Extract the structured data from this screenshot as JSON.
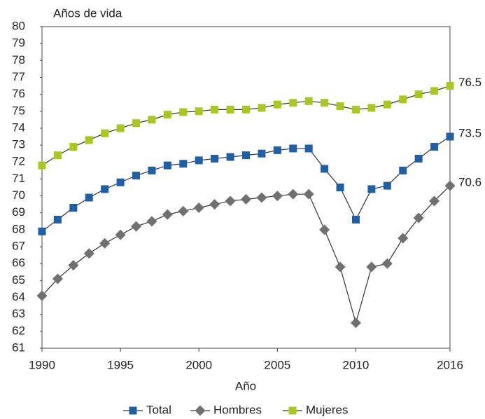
{
  "chart_data": {
    "type": "line",
    "y_axis_label": "Años de vida",
    "x_axis_label": "Año",
    "x": [
      1990,
      1991,
      1992,
      1993,
      1994,
      1995,
      1996,
      1997,
      1998,
      1999,
      2000,
      2001,
      2002,
      2003,
      2004,
      2005,
      2006,
      2007,
      2008,
      2009,
      2010,
      2011,
      2012,
      2013,
      2014,
      2015,
      2016
    ],
    "xlim": [
      1990,
      2016
    ],
    "xticks": [
      1990,
      1995,
      2000,
      2005,
      2010,
      2016
    ],
    "ylim": [
      61,
      80
    ],
    "yticks": [
      61,
      62,
      63,
      64,
      65,
      66,
      67,
      68,
      69,
      70,
      71,
      72,
      73,
      74,
      75,
      76,
      77,
      78,
      79,
      80
    ],
    "line_color": "#333333",
    "legend": "bottom",
    "series": [
      {
        "name": "Total",
        "color": "#1f5fa8",
        "marker": "square",
        "values": [
          67.9,
          68.6,
          69.3,
          69.9,
          70.4,
          70.8,
          71.2,
          71.5,
          71.8,
          71.9,
          72.1,
          72.2,
          72.3,
          72.4,
          72.5,
          72.7,
          72.8,
          72.8,
          71.6,
          70.5,
          68.6,
          70.4,
          70.6,
          71.5,
          72.2,
          72.9,
          73.5
        ]
      },
      {
        "name": "Hombres",
        "color": "#707070",
        "marker": "diamond",
        "values": [
          64.1,
          65.1,
          65.9,
          66.6,
          67.2,
          67.7,
          68.2,
          68.5,
          68.9,
          69.1,
          69.3,
          69.5,
          69.7,
          69.8,
          69.9,
          70.0,
          70.1,
          70.1,
          68.0,
          65.8,
          62.5,
          65.8,
          66.0,
          67.5,
          68.7,
          69.7,
          70.6
        ]
      },
      {
        "name": "Mujeres",
        "color": "#a8c81e",
        "marker": "square",
        "values": [
          71.8,
          72.4,
          72.9,
          73.3,
          73.7,
          74.0,
          74.3,
          74.5,
          74.8,
          74.95,
          75.0,
          75.1,
          75.1,
          75.1,
          75.2,
          75.4,
          75.5,
          75.6,
          75.5,
          75.3,
          75.1,
          75.2,
          75.4,
          75.7,
          76.0,
          76.2,
          76.5
        ]
      }
    ]
  }
}
